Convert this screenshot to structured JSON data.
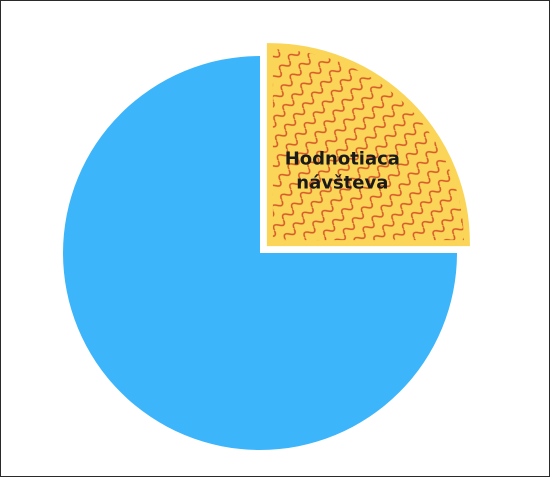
{
  "chart_data": {
    "type": "pie",
    "title": "",
    "legend": "none",
    "slices": [
      {
        "label": "",
        "value": 75,
        "color": "#3db5fb",
        "pattern": "solid",
        "exploded": false
      },
      {
        "label": "Hodnotiaca návšteva",
        "label_lines": [
          "Hodnotiaca",
          "návšteva"
        ],
        "value": 25,
        "color": "#fad558",
        "pattern": "zigzag-hatch",
        "pattern_color": "#d75a2a",
        "exploded": true
      }
    ]
  }
}
